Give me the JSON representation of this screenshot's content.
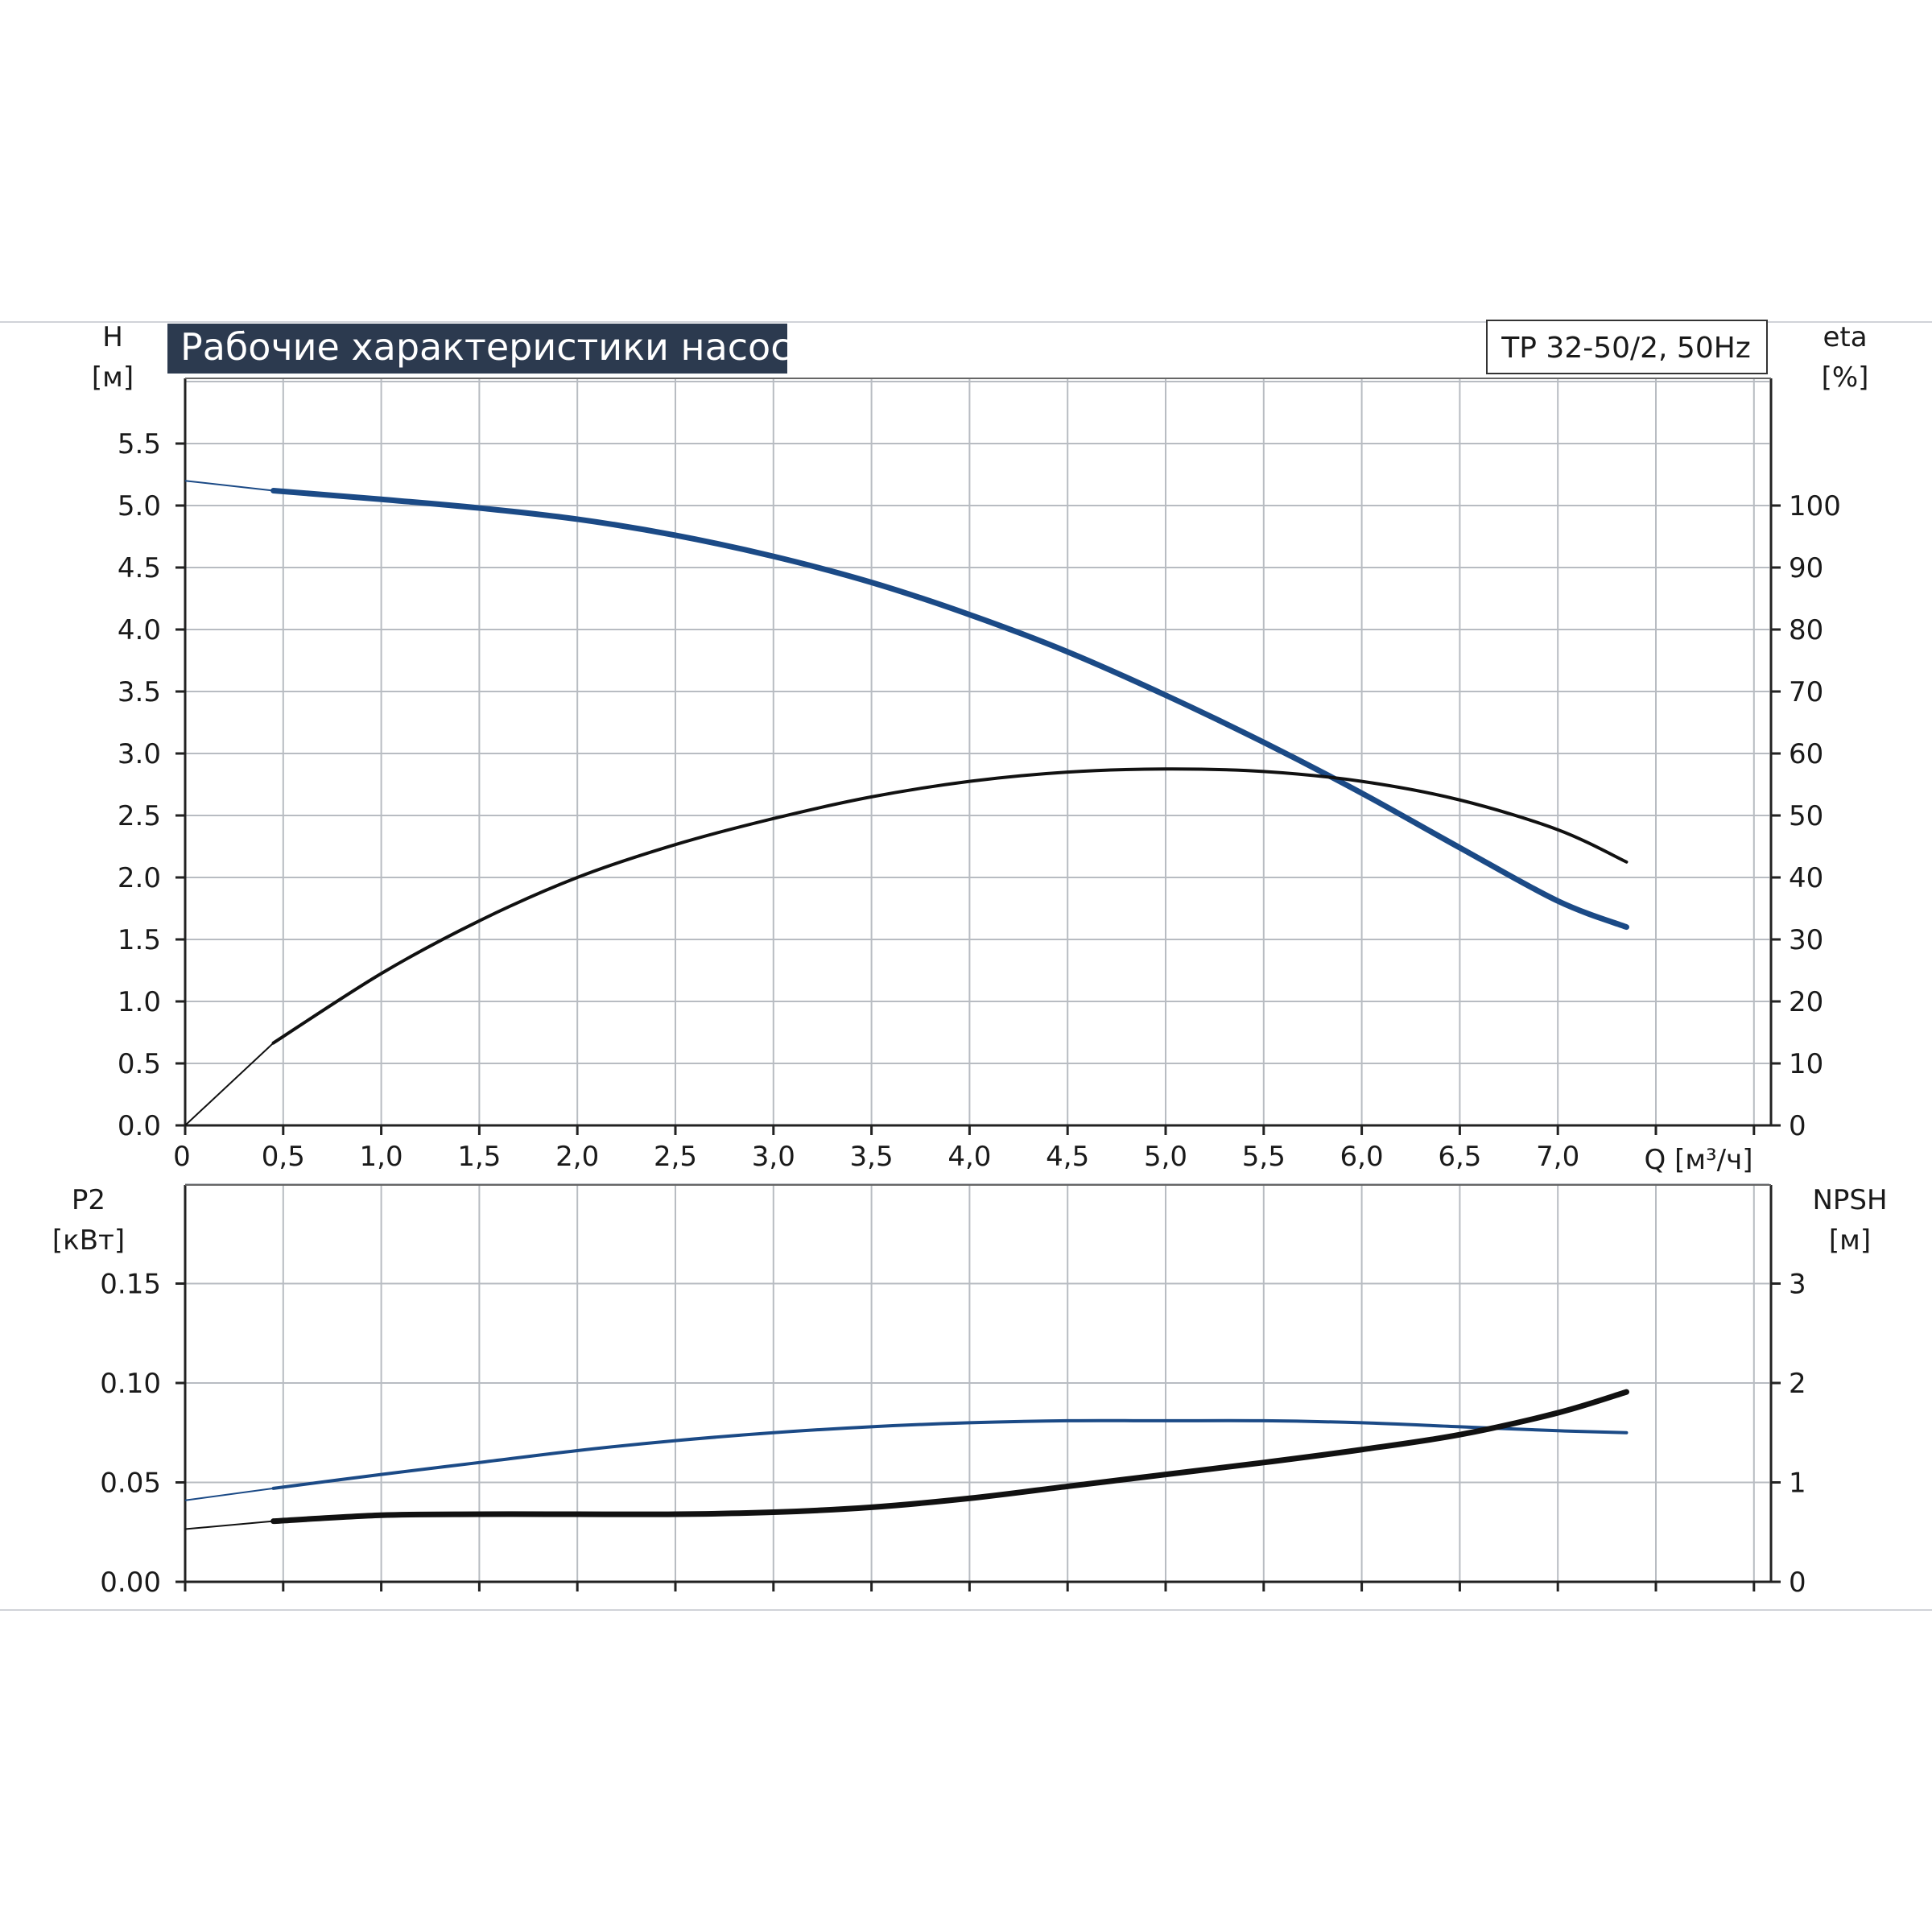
{
  "title": "Рабочие характеристики насоса",
  "model": "TP 32-50/2, 50Hz",
  "colors": {
    "title_bg": "#2c3a4f",
    "blue": "#1b4a86",
    "black": "#111111",
    "grid": "#b8bcc2"
  },
  "chart_data": [
    {
      "type": "line",
      "xlabel": "Q [м³/ч]",
      "ylabel_left": [
        "H",
        "[м]"
      ],
      "ylabel_right": [
        "eta",
        "[%]"
      ],
      "xlim": [
        0,
        7.4
      ],
      "ylim_left": [
        0,
        6.0
      ],
      "ylim_right": [
        0,
        120
      ],
      "x_ticks": [
        "0",
        "0,5",
        "1,0",
        "1,5",
        "2,0",
        "2,5",
        "3,0",
        "3,5",
        "4,0",
        "4,5",
        "5,0",
        "5,5",
        "6,0",
        "6,5",
        "7,0"
      ],
      "left_ticks": [
        "0.0",
        "0.5",
        "1.0",
        "1.5",
        "2.0",
        "2.5",
        "3.0",
        "3.5",
        "4.0",
        "4.5",
        "5.0",
        "5.5"
      ],
      "right_ticks": [
        "0",
        "10",
        "20",
        "30",
        "40",
        "50",
        "60",
        "70",
        "80",
        "90",
        "100"
      ],
      "grid": true,
      "series": [
        {
          "name": "H",
          "axis": "left",
          "color": "#1b4a86",
          "x": [
            0,
            0.45,
            1.0,
            1.5,
            2.0,
            2.5,
            3.0,
            3.5,
            4.0,
            4.5,
            5.0,
            5.5,
            6.0,
            6.5,
            7.0,
            7.35
          ],
          "y": [
            5.2,
            5.12,
            5.05,
            4.98,
            4.89,
            4.76,
            4.59,
            4.38,
            4.12,
            3.82,
            3.47,
            3.09,
            2.68,
            2.24,
            1.81,
            1.6
          ]
        },
        {
          "name": "eta",
          "axis": "right",
          "color": "#111111",
          "x": [
            0,
            0.45,
            1.0,
            1.5,
            2.0,
            2.5,
            3.0,
            3.5,
            4.0,
            4.5,
            5.0,
            5.5,
            6.0,
            6.5,
            7.0,
            7.35
          ],
          "y": [
            0,
            13.3,
            24.5,
            33,
            40,
            45.3,
            49.5,
            53,
            55.5,
            57,
            57.5,
            57.1,
            55.5,
            52.5,
            47.7,
            42.5
          ]
        }
      ]
    },
    {
      "type": "line",
      "ylabel_left": [
        "P2",
        "[кВт]"
      ],
      "ylabel_right": [
        "NPSH",
        "[м]"
      ],
      "xlim": [
        0,
        7.4
      ],
      "ylim_left": [
        0,
        0.2
      ],
      "ylim_right": [
        0,
        4
      ],
      "left_ticks": [
        "0.00",
        "0.05",
        "0.10",
        "0.15"
      ],
      "right_ticks": [
        "0",
        "1",
        "2",
        "3"
      ],
      "grid": true,
      "series": [
        {
          "name": "P2",
          "axis": "left",
          "color": "#1b4a86",
          "x": [
            0,
            0.45,
            1.0,
            1.5,
            2.0,
            2.5,
            3.0,
            3.5,
            4.0,
            4.5,
            5.0,
            5.5,
            6.0,
            6.5,
            7.0,
            7.35
          ],
          "y": [
            0.041,
            0.047,
            0.054,
            0.06,
            0.066,
            0.071,
            0.075,
            0.078,
            0.08,
            0.081,
            0.081,
            0.081,
            0.08,
            0.078,
            0.076,
            0.075
          ]
        },
        {
          "name": "NPSH",
          "axis": "right",
          "color": "#111111",
          "x": [
            0,
            0.45,
            1.0,
            1.5,
            2.0,
            2.5,
            3.0,
            3.5,
            4.0,
            4.5,
            5.0,
            5.5,
            6.0,
            6.5,
            7.0,
            7.35
          ],
          "y": [
            0.53,
            0.61,
            0.67,
            0.68,
            0.68,
            0.68,
            0.7,
            0.75,
            0.84,
            0.96,
            1.08,
            1.2,
            1.33,
            1.48,
            1.7,
            1.91
          ]
        }
      ]
    }
  ]
}
